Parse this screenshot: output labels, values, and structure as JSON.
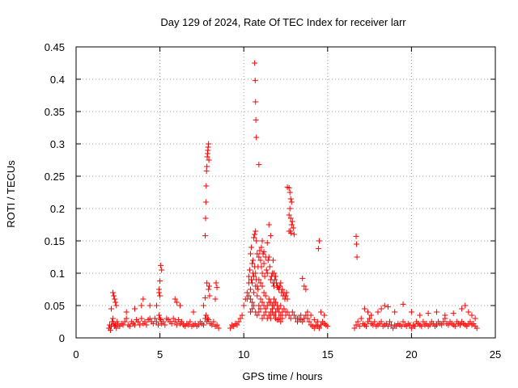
{
  "chart_data": {
    "type": "scatter",
    "title": "Day 129 of 2024, Rate Of TEC Index for receiver larr",
    "xlabel": "GPS time / hours",
    "ylabel": "ROTI / TECUs",
    "xlim": [
      0,
      25
    ],
    "ylim": [
      0,
      0.45
    ],
    "xticks": [
      0,
      5,
      10,
      15,
      20,
      25
    ],
    "xtick_labels": [
      "0",
      "5",
      "10",
      "15",
      "20",
      "25"
    ],
    "yticks": [
      0,
      0.05,
      0.1,
      0.15,
      0.2,
      0.25,
      0.3,
      0.35,
      0.4,
      0.45
    ],
    "ytick_labels": [
      "0",
      "0.05",
      "0.1",
      "0.15",
      "0.2",
      "0.25",
      "0.3",
      "0.35",
      "0.4",
      "0.45"
    ],
    "grid": true,
    "marker": "+",
    "color": "#ff0000",
    "series": [
      {
        "name": "ROTI",
        "x": [
          1.95,
          2.0,
          2.05,
          2.1,
          2.15,
          2.2,
          2.25,
          2.3,
          2.35,
          2.4,
          2.45,
          2.5,
          2.6,
          2.7,
          2.8,
          2.9,
          3.0,
          3.1,
          3.2,
          3.3,
          3.4,
          3.5,
          3.6,
          3.7,
          3.8,
          3.9,
          4.0,
          4.1,
          4.2,
          4.3,
          4.4,
          4.5,
          4.6,
          4.7,
          4.8,
          4.9,
          4.95,
          5.0,
          5.05,
          5.1,
          5.2,
          5.3,
          5.4,
          5.5,
          5.6,
          5.7,
          5.8,
          5.9,
          6.0,
          6.1,
          6.2,
          6.3,
          6.4,
          6.5,
          6.6,
          6.7,
          6.8,
          6.9,
          7.0,
          7.1,
          7.2,
          7.3,
          7.4,
          7.5,
          7.6,
          7.7,
          7.75,
          7.8,
          7.85,
          7.9,
          8.0,
          8.1,
          8.2,
          8.3,
          8.4,
          8.5,
          2.2,
          2.25,
          2.3,
          2.35,
          2.4,
          2.1,
          3.0,
          3.5,
          3.9,
          4.0,
          4.4,
          4.8,
          4.95,
          5.0,
          5.1,
          5.05,
          4.95,
          5.0,
          5.9,
          6.0,
          6.2,
          7.0,
          7.6,
          7.7,
          7.8,
          7.9,
          8.35,
          8.4,
          8.3,
          7.7,
          7.72,
          7.74,
          7.76,
          7.78,
          7.8,
          7.82,
          7.84,
          7.86,
          7.88,
          7.9,
          7.92,
          7.94,
          7.96,
          9.2,
          9.3,
          9.4,
          9.5,
          9.6,
          9.7,
          9.8,
          9.9,
          10.0,
          10.1,
          10.2,
          10.3,
          10.4,
          10.5,
          10.6,
          10.7,
          10.8,
          10.9,
          11.0,
          11.1,
          11.2,
          11.3,
          11.4,
          11.5,
          11.6,
          11.7,
          11.8,
          11.9,
          12.0,
          12.1,
          12.2,
          12.3,
          12.4,
          12.5,
          12.6,
          12.7,
          12.8,
          12.9,
          13.0,
          13.1,
          13.2,
          13.3,
          13.4,
          13.5,
          13.6,
          13.7,
          13.8,
          13.9,
          14.0,
          14.1,
          14.2,
          14.3,
          14.4,
          14.5,
          14.6,
          14.7,
          14.8,
          14.9,
          15.0,
          10.3,
          10.35,
          10.4,
          10.45,
          10.5,
          10.55,
          10.6,
          10.65,
          10.7,
          10.75,
          10.8,
          10.85,
          10.9,
          10.95,
          11.0,
          11.05,
          11.1,
          11.15,
          11.2,
          11.25,
          11.3,
          11.35,
          11.4,
          11.45,
          11.5,
          11.55,
          11.6,
          11.65,
          11.7,
          11.75,
          11.8,
          11.85,
          11.9,
          11.95,
          12.0,
          12.05,
          12.1,
          12.15,
          12.2,
          12.25,
          12.3,
          12.35,
          12.4,
          12.45,
          12.5,
          12.55,
          12.6,
          10.4,
          10.5,
          10.6,
          10.7,
          10.8,
          10.9,
          11.0,
          11.1,
          11.2,
          11.3,
          11.4,
          11.5,
          11.6,
          11.7,
          11.8,
          11.9,
          12.0,
          12.1,
          12.2,
          12.3,
          10.2,
          10.3,
          10.4,
          10.45,
          10.5,
          10.55,
          10.6,
          10.65,
          10.7,
          10.75,
          10.8,
          10.85,
          10.9,
          11.0,
          11.1,
          11.2,
          11.3,
          11.5,
          11.6,
          11.7,
          11.8,
          11.9,
          12.0,
          12.1,
          12.2,
          12.4,
          12.5,
          10.65,
          10.68,
          10.7,
          10.72,
          10.75,
          10.9,
          11.05,
          11.1,
          11.2,
          11.4,
          11.5,
          11.6,
          11.75,
          11.8,
          12.6,
          12.7,
          12.75,
          12.8,
          12.85,
          12.7,
          12.75,
          12.8,
          12.85,
          12.78,
          12.82,
          12.9,
          12.95,
          13.0,
          12.7,
          13.5,
          13.6,
          13.7,
          14.5,
          14.45,
          16.7,
          16.72,
          16.75,
          13.2,
          13.4,
          13.6,
          13.8,
          14.0,
          14.2,
          14.4,
          14.6,
          14.8,
          16.6,
          16.7,
          16.8,
          16.9,
          17.0,
          17.1,
          17.2,
          17.3,
          17.4,
          17.5,
          17.6,
          17.7,
          17.8,
          17.9,
          18.0,
          18.1,
          18.2,
          18.3,
          18.4,
          18.5,
          18.6,
          18.7,
          18.8,
          18.9,
          19.0,
          19.1,
          19.2,
          19.3,
          19.4,
          19.5,
          19.6,
          19.7,
          19.8,
          19.9,
          20.0,
          20.1,
          20.2,
          20.3,
          20.4,
          20.5,
          20.6,
          20.7,
          20.8,
          20.9,
          21.0,
          21.1,
          21.2,
          21.3,
          21.4,
          21.5,
          21.6,
          21.7,
          21.8,
          21.9,
          22.0,
          22.1,
          22.2,
          22.3,
          22.4,
          22.5,
          22.6,
          22.7,
          22.8,
          22.9,
          23.0,
          23.1,
          23.2,
          23.3,
          23.4,
          23.5,
          23.6,
          23.7,
          23.8,
          23.9,
          17.2,
          17.4,
          17.6,
          18.0,
          18.2,
          18.4,
          18.6,
          19.0,
          19.5,
          20.0,
          20.5,
          21.0,
          21.5,
          22.0,
          22.5,
          23.0,
          23.2,
          23.4,
          23.6,
          23.8
        ],
        "y": [
          0.015,
          0.02,
          0.012,
          0.018,
          0.025,
          0.03,
          0.022,
          0.018,
          0.02,
          0.015,
          0.025,
          0.02,
          0.018,
          0.022,
          0.02,
          0.025,
          0.03,
          0.02,
          0.018,
          0.025,
          0.022,
          0.02,
          0.028,
          0.025,
          0.02,
          0.03,
          0.022,
          0.025,
          0.02,
          0.028,
          0.03,
          0.025,
          0.022,
          0.03,
          0.025,
          0.02,
          0.035,
          0.03,
          0.028,
          0.022,
          0.025,
          0.02,
          0.03,
          0.028,
          0.025,
          0.022,
          0.03,
          0.025,
          0.02,
          0.028,
          0.022,
          0.025,
          0.02,
          0.018,
          0.022,
          0.02,
          0.025,
          0.018,
          0.02,
          0.022,
          0.018,
          0.02,
          0.025,
          0.022,
          0.02,
          0.03,
          0.035,
          0.025,
          0.03,
          0.028,
          0.022,
          0.02,
          0.025,
          0.018,
          0.02,
          0.015,
          0.07,
          0.065,
          0.06,
          0.055,
          0.05,
          0.045,
          0.04,
          0.045,
          0.05,
          0.06,
          0.05,
          0.05,
          0.07,
          0.088,
          0.105,
          0.112,
          0.075,
          0.065,
          0.06,
          0.055,
          0.05,
          0.04,
          0.05,
          0.062,
          0.085,
          0.075,
          0.085,
          0.078,
          0.06,
          0.158,
          0.185,
          0.21,
          0.235,
          0.258,
          0.265,
          0.28,
          0.285,
          0.29,
          0.295,
          0.3,
          0.275,
          0.08,
          0.065,
          0.015,
          0.02,
          0.018,
          0.022,
          0.02,
          0.025,
          0.03,
          0.035,
          0.05,
          0.06,
          0.07,
          0.085,
          0.06,
          0.055,
          0.07,
          0.08,
          0.065,
          0.05,
          0.06,
          0.055,
          0.05,
          0.045,
          0.05,
          0.055,
          0.04,
          0.045,
          0.05,
          0.04,
          0.045,
          0.04,
          0.035,
          0.04,
          0.045,
          0.035,
          0.04,
          0.035,
          0.03,
          0.04,
          0.035,
          0.03,
          0.025,
          0.03,
          0.028,
          0.025,
          0.03,
          0.035,
          0.03,
          0.025,
          0.02,
          0.018,
          0.015,
          0.02,
          0.018,
          0.015,
          0.02,
          0.025,
          0.022,
          0.02,
          0.018,
          0.095,
          0.105,
          0.13,
          0.14,
          0.115,
          0.12,
          0.155,
          0.16,
          0.165,
          0.15,
          0.13,
          0.11,
          0.125,
          0.135,
          0.12,
          0.11,
          0.1,
          0.13,
          0.115,
          0.095,
          0.125,
          0.105,
          0.1,
          0.12,
          0.125,
          0.11,
          0.09,
          0.095,
          0.1,
          0.085,
          0.08,
          0.09,
          0.095,
          0.085,
          0.08,
          0.078,
          0.075,
          0.08,
          0.085,
          0.07,
          0.075,
          0.065,
          0.07,
          0.06,
          0.065,
          0.07,
          0.06,
          0.04,
          0.045,
          0.05,
          0.04,
          0.035,
          0.04,
          0.045,
          0.03,
          0.035,
          0.04,
          0.03,
          0.035,
          0.03,
          0.04,
          0.035,
          0.03,
          0.028,
          0.03,
          0.025,
          0.03,
          0.06,
          0.065,
          0.075,
          0.09,
          0.085,
          0.1,
          0.095,
          0.11,
          0.1,
          0.09,
          0.08,
          0.075,
          0.09,
          0.085,
          0.08,
          0.07,
          0.065,
          0.06,
          0.055,
          0.05,
          0.06,
          0.055,
          0.05,
          0.045,
          0.05,
          0.045,
          0.04,
          0.425,
          0.398,
          0.365,
          0.337,
          0.31,
          0.268,
          0.14,
          0.15,
          0.133,
          0.147,
          0.175,
          0.158,
          0.12,
          0.1,
          0.233,
          0.232,
          0.225,
          0.215,
          0.21,
          0.19,
          0.2,
          0.185,
          0.175,
          0.165,
          0.162,
          0.18,
          0.17,
          0.16,
          0.165,
          0.092,
          0.08,
          0.075,
          0.15,
          0.138,
          0.157,
          0.145,
          0.125,
          0.03,
          0.035,
          0.03,
          0.04,
          0.035,
          0.028,
          0.025,
          0.04,
          0.035,
          0.015,
          0.02,
          0.025,
          0.018,
          0.03,
          0.022,
          0.02,
          0.018,
          0.025,
          0.03,
          0.022,
          0.02,
          0.025,
          0.018,
          0.02,
          0.022,
          0.025,
          0.018,
          0.02,
          0.022,
          0.018,
          0.025,
          0.02,
          0.015,
          0.02,
          0.018,
          0.022,
          0.02,
          0.018,
          0.025,
          0.02,
          0.018,
          0.022,
          0.02,
          0.015,
          0.02,
          0.018,
          0.025,
          0.022,
          0.02,
          0.018,
          0.025,
          0.02,
          0.022,
          0.018,
          0.02,
          0.025,
          0.022,
          0.018,
          0.02,
          0.025,
          0.022,
          0.02,
          0.025,
          0.03,
          0.022,
          0.02,
          0.025,
          0.022,
          0.02,
          0.018,
          0.025,
          0.022,
          0.02,
          0.025,
          0.022,
          0.02,
          0.018,
          0.022,
          0.025,
          0.02,
          0.022,
          0.018,
          0.015,
          0.045,
          0.04,
          0.035,
          0.04,
          0.045,
          0.05,
          0.048,
          0.04,
          0.052,
          0.04,
          0.035,
          0.038,
          0.04,
          0.035,
          0.038,
          0.045,
          0.05,
          0.04,
          0.035,
          0.03
        ]
      }
    ]
  }
}
